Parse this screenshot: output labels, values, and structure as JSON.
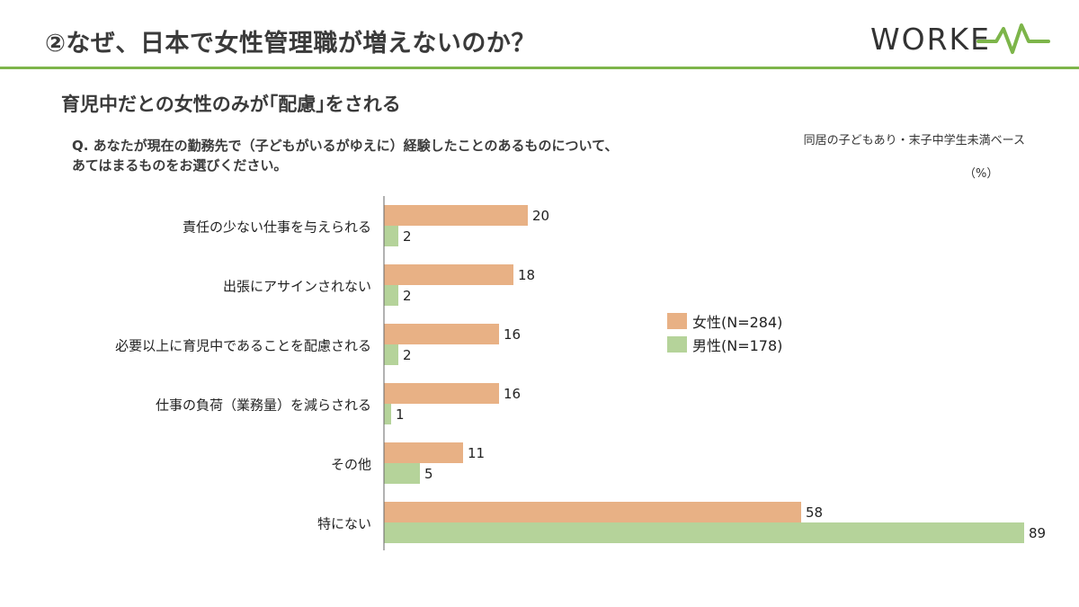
{
  "header": {
    "title": "②なぜ、日本で女性管理職が増えないのか？",
    "logo_text": "WORKE"
  },
  "subtitle": "育児中だとの女性のみが｢配慮｣をされる",
  "question": {
    "line1": "Q. あなたが現在の勤務先で（子どもがいるがゆえに）経験したことのあるものについて、",
    "line2": "あてはまるものをお選びください。"
  },
  "base_note": "同居の子どもあり・末子中学生未満ベース",
  "unit_note": "（%）",
  "colors": {
    "accent_green": "#7db54a",
    "female": "#e8b185",
    "male": "#b5d39a"
  },
  "legend": {
    "female": "女性(N=284)",
    "male": "男性(N=178)"
  },
  "chart_data": {
    "type": "bar",
    "orientation": "horizontal",
    "categories": [
      "責任の少ない仕事を与えられる",
      "出張にアサインされない",
      "必要以上に育児中であることを配慮される",
      "仕事の負荷（業務量）を減らされる",
      "その他",
      "特にない"
    ],
    "series": [
      {
        "name": "女性(N=284)",
        "values": [
          20,
          18,
          16,
          16,
          11,
          58
        ]
      },
      {
        "name": "男性(N=178)",
        "values": [
          2,
          2,
          2,
          1,
          5,
          89
        ]
      }
    ],
    "xlim": [
      0,
      90
    ],
    "grid": false,
    "data_labels": true,
    "legend_position": "right-middle"
  }
}
